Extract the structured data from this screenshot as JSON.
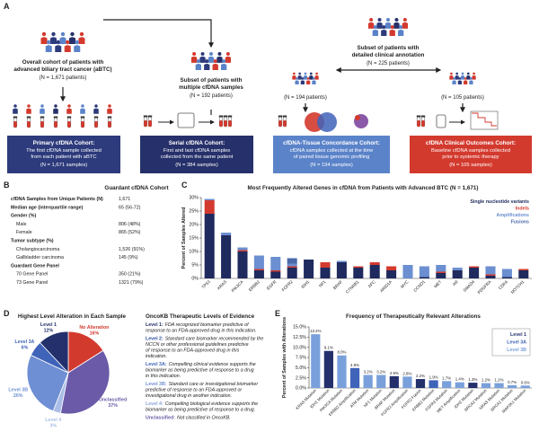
{
  "panel_a": {
    "label": "A",
    "overall": {
      "lines": [
        "Overall cohort of patients with",
        "advanced biliary tract cancer (aBTC)"
      ],
      "n": "(N = 1,671 patients)"
    },
    "serial": {
      "lines": [
        "Subset of patients with",
        "multiple cfDNA samples"
      ],
      "n": "(N = 192 patients)"
    },
    "clinical": {
      "lines": [
        "Subset of patients with",
        "detailed clinical annotation"
      ],
      "n": "(N = 225 patients)"
    },
    "concordance_n": "(N = 194 patients)",
    "outcomes_n": "(N = 105 patients)",
    "boxes": [
      {
        "title": "Primary cfDNA Cohort:",
        "lines": [
          "The first cfDNA sample collected",
          "from each patient with aBTC"
        ],
        "n": "(N = 1,671 samples)",
        "color": "#2d3b7c"
      },
      {
        "title": "Serial cfDNA Cohort:",
        "lines": [
          "First and last cfDNA samples",
          "collected from the same patient"
        ],
        "n": "(N = 384 samples)",
        "color": "#26306a"
      },
      {
        "title": "cfDNA-Tissue Concordance Cohort:",
        "lines": [
          "cfDNA samples collected at the time",
          "of paired tissue genomic profiling"
        ],
        "n": "(N = 194 samples)",
        "color": "#5b83c9"
      },
      {
        "title": "cfDNA Clinical Outcomes Cohort:",
        "lines": [
          "Baseline cfDNA samples collected",
          "prior to systemic therapy"
        ],
        "n": "(N = 105 samples)",
        "color": "#d33a2e"
      }
    ]
  },
  "table_b": {
    "label": "B",
    "header": "Guardant cfDNA Cohort",
    "rows": [
      [
        "cfDNA Samples from Unique Patients (N)",
        "1,671"
      ],
      [
        "Median age (interquartile range)",
        "65 (56-72)"
      ],
      [
        "Gender (%)"
      ],
      [
        "Male",
        "806 (48%)"
      ],
      [
        "Female",
        "865 (52%)"
      ],
      [
        "Tumor subtype (%)"
      ],
      [
        "Cholangiocarcinoma",
        "1,526 (91%)"
      ],
      [
        "Gallbladder carcinoma",
        "145 (9%)"
      ],
      [
        "Guardant Gene Panel"
      ],
      [
        "70 Gene Panel",
        "350 (21%)"
      ],
      [
        "73 Gene Panel",
        "1321 (79%)"
      ]
    ]
  },
  "oncokb": {
    "title": "OncoKB Therapeutic Levels of Evidence",
    "levels": [
      {
        "level": "Level 1:",
        "color": "#23306b",
        "text": [
          "FDA recognized biomarker predictive of",
          "response to an FDA-approved drug in this indication."
        ]
      },
      {
        "level": "Level 2:",
        "color": "#2f4fa0",
        "text": [
          "Standard care biomarker recommended by the",
          "NCCN or other professional guidelines predictive",
          "of response to an FDA-approved drug in this",
          "indication."
        ]
      },
      {
        "level": "Level 3A:",
        "color": "#3f63b8",
        "text": [
          "Compelling clinical evidence supports the",
          "biomarker as being predictive of response to a drug",
          "in this indication."
        ]
      },
      {
        "level": "Level 3B:",
        "color": "#6f8fd4",
        "text": [
          "Standard care or investigational biomarker",
          "predictive of response to an FDA-approved or",
          "investigational drug in another indication."
        ]
      },
      {
        "level": "Level 4:",
        "color": "#8aa3d8",
        "text": [
          "Compelling biological evidence supports the",
          "biomarker as being predictive of response to a drug."
        ]
      },
      {
        "level": "Unclassified:",
        "color": "#6a5aa8",
        "text": [
          "Not classified in OncoKB."
        ]
      }
    ]
  },
  "chart_data": [
    {
      "type": "stacked_bar",
      "label": "C",
      "title": "Most Frequently Altered Genes in cfDNA from Patients with Advanced BTC (N = 1,671)",
      "y_label": "Percent of Samples Altered",
      "categories": [
        "TP53",
        "KRAS",
        "PIK3CA",
        "ERBB2",
        "EGFR",
        "FGFR2",
        "IDH1",
        "NF1",
        "BRAF",
        "CTNNB1",
        "APC",
        "ARID1A",
        "MYC",
        "CCND1",
        "MET",
        "AR",
        "SMAD4",
        "PDGFRA",
        "CDK6",
        "NOTCH1"
      ],
      "series": [
        {
          "name": "Single nucleotide variants",
          "color": "#1f2a5e",
          "values": [
            24,
            16,
            10,
            3,
            2.5,
            4,
            7,
            4,
            6,
            4,
            5,
            3,
            0,
            0.5,
            2,
            3,
            4,
            1,
            0.5,
            3
          ]
        },
        {
          "name": "Indels",
          "color": "#d33a2e",
          "values": [
            5,
            0,
            0.5,
            0.5,
            0.5,
            0.5,
            0,
            2,
            0,
            0.5,
            1,
            1.5,
            0,
            0,
            0.5,
            0,
            0.5,
            0.5,
            0,
            0.5
          ]
        },
        {
          "name": "Amplifications",
          "color": "#6b8fd0",
          "values": [
            0.5,
            1,
            1,
            5,
            5,
            1,
            0,
            0,
            0.5,
            0,
            0,
            0,
            5,
            4,
            2.5,
            1,
            0,
            3,
            3,
            0
          ]
        },
        {
          "name": "Fusions",
          "color": "#4a6aa8",
          "values": [
            0,
            0,
            0,
            0,
            0,
            2,
            0,
            0,
            0,
            0,
            0,
            0,
            0,
            0,
            0,
            0,
            0,
            0,
            0,
            0
          ]
        }
      ],
      "ylim": [
        0,
        30
      ],
      "yticks": [
        {
          "value": 0,
          "label": "0%"
        },
        {
          "value": 5,
          "label": "5%"
        },
        {
          "value": 10,
          "label": "10%"
        },
        {
          "value": 15,
          "label": "15%"
        },
        {
          "value": 20,
          "label": "20%"
        },
        {
          "value": 25,
          "label": "25%"
        },
        {
          "value": 30,
          "label": "30%"
        }
      ],
      "legend": "top-right"
    },
    {
      "type": "pie",
      "label": "D",
      "title": "Highest Level Alteration in Each Sample",
      "labels": [
        "No Alteration",
        "Unclassified",
        "Level 4",
        "Level 3B",
        "Level 3A",
        "Level 1"
      ],
      "values": [
        16,
        37,
        3,
        26,
        6,
        12
      ],
      "value_labels": [
        "16%",
        "37%",
        "3%",
        "26%",
        "6%",
        "12%"
      ],
      "colors": [
        "#d33a2e",
        "#6a5aa8",
        "#a9bde6",
        "#6f8fd4",
        "#3f63b8",
        "#23306b"
      ]
    },
    {
      "type": "bar",
      "label": "E",
      "title": "Frequency of Therapeutically Relevant Alterations",
      "y_label": "Percent of Samples with Alterations",
      "categories": [
        "KRAS Mutation",
        "IDH1 Mutation",
        "PIK3CA Mutation",
        "ERBB2 Amplification",
        "ATM Mutation",
        "NF1 Mutation",
        "BRAF Mutation",
        "FGFR2 Amplification",
        "FGFR2 Fusion",
        "ERBB2 Mutation",
        "FGFR3 Mutation",
        "MET Amplification",
        "IDH2 Mutation",
        "BRCA2 Mutation",
        "NRAS Mutation",
        "BRCA1 Mutation",
        "MAP2K1 Mutation"
      ],
      "values": [
        13.2,
        9.1,
        8.0,
        4.9,
        3.2,
        3.2,
        2.9,
        2.8,
        2.2,
        1.9,
        1.7,
        1.4,
        1.3,
        1.2,
        1.2,
        0.7,
        0.6
      ],
      "value_labels": [
        "13.2%",
        "9.1%",
        "8.0%",
        "4.9%",
        "3.2%",
        "3.2%",
        "2.9%",
        "2.8%",
        "2.2%",
        "1.9%",
        "1.7%",
        "1.4%",
        "1.3%",
        "1.2%",
        "1.2%",
        "0.7%",
        "0.6%"
      ],
      "colors": [
        "#7aa0dc",
        "#23306b",
        "#7aa0dc",
        "#3f63b8",
        "#7aa0dc",
        "#7aa0dc",
        "#23306b",
        "#7aa0dc",
        "#23306b",
        "#3f63b8",
        "#7aa0dc",
        "#7aa0dc",
        "#23306b",
        "#7aa0dc",
        "#7aa0dc",
        "#7aa0dc",
        "#7aa0dc"
      ],
      "legend_items": [
        {
          "name": "Level 1",
          "color": "#23306b"
        },
        {
          "name": "Level 3A",
          "color": "#3f63b8"
        },
        {
          "name": "Level 3B",
          "color": "#7aa0dc"
        }
      ],
      "ylim": [
        0,
        15
      ],
      "yticks": [
        {
          "value": 0,
          "label": "0.0%"
        },
        {
          "value": 2.5,
          "label": "2.5%"
        },
        {
          "value": 5,
          "label": "5.0%"
        },
        {
          "value": 7.5,
          "label": "7.5%"
        },
        {
          "value": 10,
          "label": "10.0%"
        },
        {
          "value": 12.5,
          "label": "12.5%"
        },
        {
          "value": 15,
          "label": "15.0%"
        }
      ],
      "legend": "top-right"
    }
  ]
}
